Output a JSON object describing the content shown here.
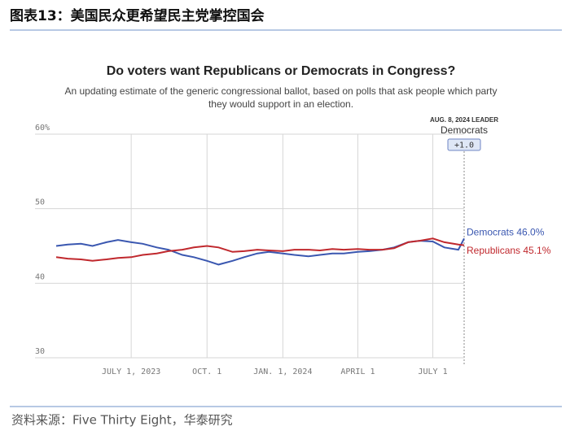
{
  "header": {
    "title": "图表13：美国民众更希望民主党掌控国会"
  },
  "source": "资料来源：Five Thirty Eight，华泰研究",
  "chart_data": {
    "type": "line",
    "title": "Do voters want Republicans or Democrats in Congress?",
    "subtitle": [
      "An updating estimate of the generic congressional ballot, based on polls that ask people which party",
      "they would support in an election."
    ],
    "annotation": {
      "date_label": "AUG. 8, 2024 LEADER",
      "leader": "Democrats",
      "margin": "+1.0"
    },
    "x": [
      "2023-04-01",
      "2023-04-15",
      "2023-05-01",
      "2023-05-15",
      "2023-06-01",
      "2023-06-15",
      "2023-07-01",
      "2023-07-15",
      "2023-08-01",
      "2023-08-15",
      "2023-09-01",
      "2023-09-15",
      "2023-10-01",
      "2023-10-15",
      "2023-11-01",
      "2023-11-15",
      "2023-12-01",
      "2023-12-15",
      "2024-01-01",
      "2024-01-15",
      "2024-02-01",
      "2024-02-15",
      "2024-03-01",
      "2024-03-15",
      "2024-04-01",
      "2024-04-15",
      "2024-05-01",
      "2024-05-15",
      "2024-06-01",
      "2024-06-15",
      "2024-07-01",
      "2024-07-15",
      "2024-08-01",
      "2024-08-08"
    ],
    "series": [
      {
        "name": "Democrats",
        "end_label": "Democrats 46.0%",
        "color": "#3a57b0",
        "values": [
          45,
          45.2,
          45.3,
          45,
          45.5,
          45.8,
          45.5,
          45.3,
          44.8,
          44.5,
          43.8,
          43.5,
          43,
          42.5,
          43,
          43.5,
          44,
          44.2,
          44,
          43.8,
          43.6,
          43.8,
          44,
          44,
          44.2,
          44.3,
          44.5,
          44.8,
          45.5,
          45.7,
          45.6,
          44.8,
          44.5,
          46
        ]
      },
      {
        "name": "Republicans",
        "end_label": "Republicans 45.1%",
        "color": "#c0282d",
        "values": [
          43.5,
          43.3,
          43.2,
          43,
          43.2,
          43.4,
          43.5,
          43.8,
          44,
          44.3,
          44.5,
          44.8,
          45,
          44.8,
          44.2,
          44.3,
          44.5,
          44.4,
          44.3,
          44.5,
          44.5,
          44.4,
          44.6,
          44.5,
          44.6,
          44.5,
          44.5,
          44.7,
          45.5,
          45.7,
          46,
          45.5,
          45.2,
          45.1
        ]
      }
    ],
    "xlim": [
      "2023-03-28",
      "2024-08-08"
    ],
    "xticks": [
      {
        "value": "2023-07-01",
        "label": "JULY 1, 2023"
      },
      {
        "value": "2023-10-01",
        "label": "OCT. 1"
      },
      {
        "value": "2024-01-01",
        "label": "JAN. 1, 2024"
      },
      {
        "value": "2024-04-01",
        "label": "APRIL 1"
      },
      {
        "value": "2024-07-01",
        "label": "JULY 1"
      }
    ],
    "ylim": [
      30,
      60
    ],
    "yticks": [
      30,
      40,
      50,
      {
        "value": 60,
        "label": "60%"
      }
    ],
    "grid": true
  }
}
